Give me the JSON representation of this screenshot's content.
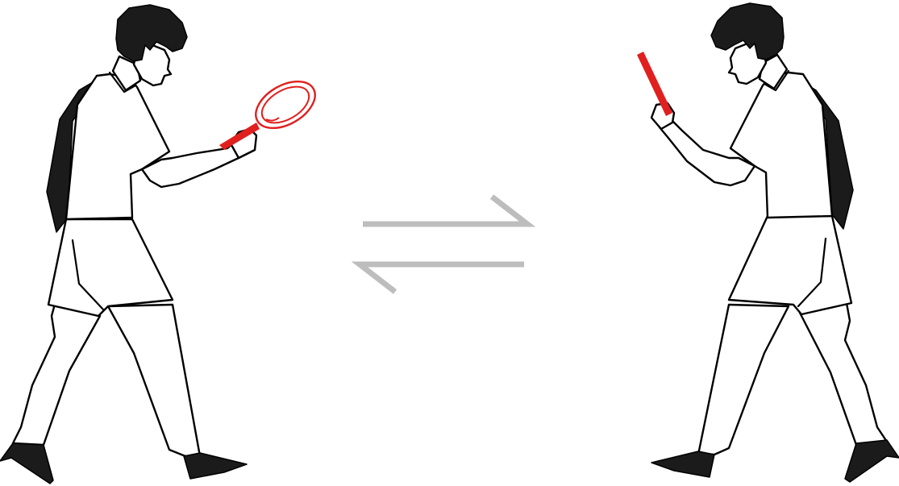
{
  "scene": {
    "colors": {
      "background": "#ffffff",
      "figure_outline": "#000000",
      "hair_and_backpack": "#1b1b1b",
      "tool_accent": "#e0201f",
      "exchange_arrows": "#bdbdbd"
    },
    "figures": [
      {
        "name": "left-person",
        "holding": "magnifying-glass-icon",
        "facing": "right"
      },
      {
        "name": "right-person",
        "holding": "mobile-phone-icon",
        "facing": "left"
      }
    ],
    "center_symbol": "exchange-arrows-icon"
  }
}
